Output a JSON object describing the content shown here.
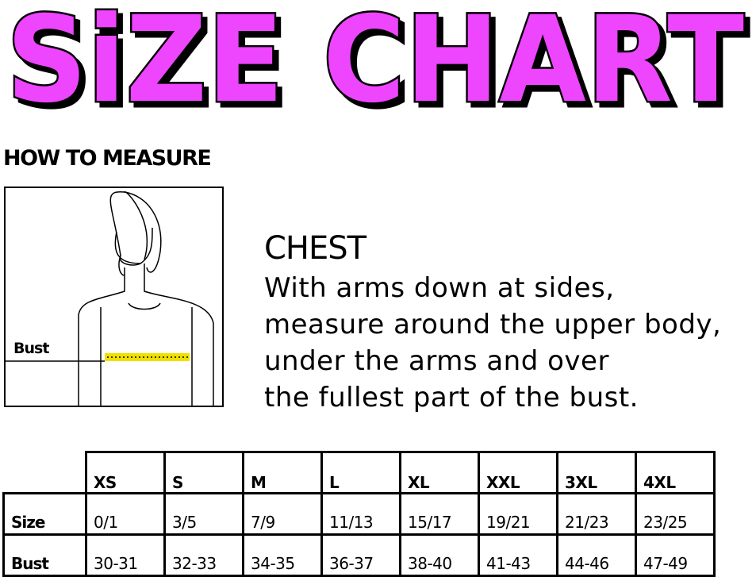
{
  "title": "SiZE CHART",
  "title_color": "#ee44ff",
  "how_to_measure": "HOW TO MEASURE",
  "figure": {
    "bust_label": "Bust",
    "tape_color": "#f0e000"
  },
  "chest": {
    "heading": "CHEST",
    "lines": [
      "With arms down at sides,",
      "measure around the upper body,",
      "under the arms and over",
      "the fullest part of the bust."
    ]
  },
  "table": {
    "headers": [
      "XS",
      "S",
      "M",
      "L",
      "XL",
      "XXL",
      "3XL",
      "4XL"
    ],
    "rows": [
      {
        "label": "Size",
        "values": [
          "0/1",
          "3/5",
          "7/9",
          "11/13",
          "15/17",
          "19/21",
          "21/23",
          "23/25"
        ]
      },
      {
        "label": "Bust",
        "values": [
          "30-31",
          "32-33",
          "34-35",
          "36-37",
          "38-40",
          "41-43",
          "44-46",
          "47-49"
        ]
      }
    ]
  }
}
